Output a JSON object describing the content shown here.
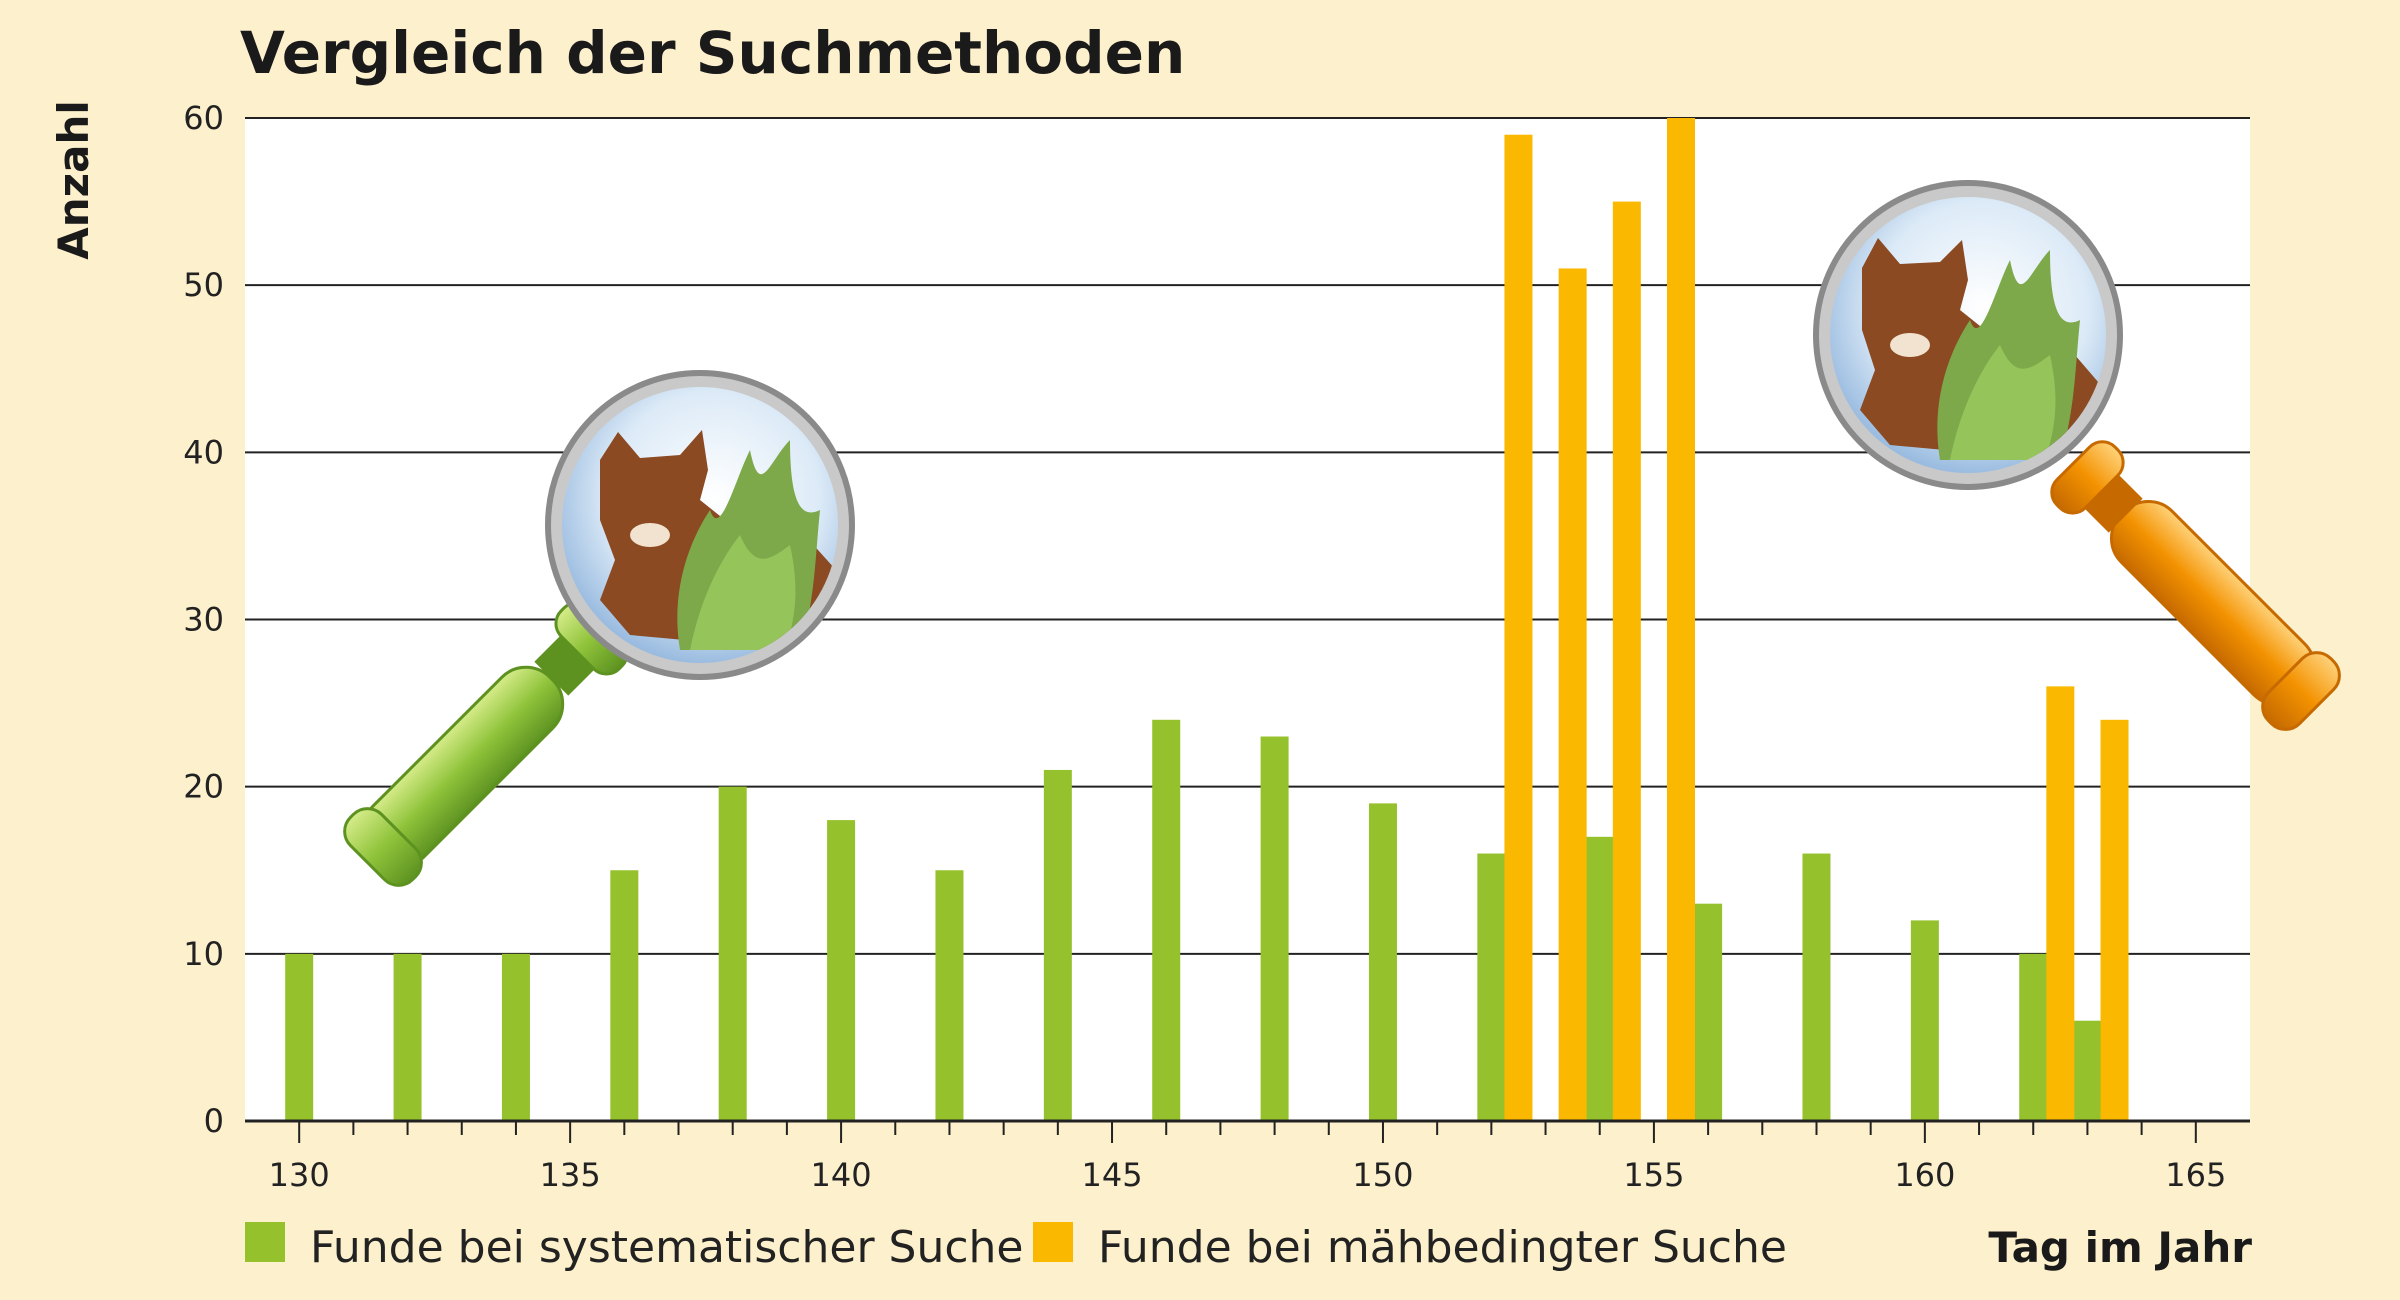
{
  "chart_data": {
    "type": "bar",
    "title": "Vergleich der Suchmethoden",
    "xlabel": "Tag im Jahr",
    "ylabel": "Anzahl",
    "xlim": [
      129,
      166
    ],
    "ylim": [
      0,
      60
    ],
    "x_ticks": [
      130,
      135,
      140,
      145,
      150,
      155,
      160,
      165
    ],
    "y_ticks": [
      0,
      10,
      20,
      30,
      40,
      50,
      60
    ],
    "grid": true,
    "legend_position": "bottom-left",
    "series": [
      {
        "name": "Funde bei systematischer Suche",
        "color": "#95c12c",
        "points": [
          {
            "x": 130,
            "y": 10
          },
          {
            "x": 132,
            "y": 10
          },
          {
            "x": 134,
            "y": 10
          },
          {
            "x": 136,
            "y": 15
          },
          {
            "x": 138,
            "y": 20
          },
          {
            "x": 140,
            "y": 18
          },
          {
            "x": 142,
            "y": 15
          },
          {
            "x": 144,
            "y": 21
          },
          {
            "x": 146,
            "y": 24
          },
          {
            "x": 148,
            "y": 23
          },
          {
            "x": 150,
            "y": 19
          },
          {
            "x": 152,
            "y": 16
          },
          {
            "x": 154,
            "y": 17
          },
          {
            "x": 156,
            "y": 13
          },
          {
            "x": 158,
            "y": 16
          },
          {
            "x": 160,
            "y": 12
          },
          {
            "x": 162,
            "y": 10
          },
          {
            "x": 163,
            "y": 6
          }
        ]
      },
      {
        "name": "Funde bei mähbedingter Suche",
        "color": "#fbb800",
        "points": [
          {
            "x": 152.5,
            "y": 59
          },
          {
            "x": 153.5,
            "y": 51
          },
          {
            "x": 154.5,
            "y": 55
          },
          {
            "x": 155.5,
            "y": 60
          },
          {
            "x": 162.5,
            "y": 26
          },
          {
            "x": 163.5,
            "y": 24
          }
        ]
      }
    ]
  },
  "decorations": {
    "left_magnifier": {
      "icon": "magnifier-fawn-icon",
      "handle_color": "#8fc33a"
    },
    "right_magnifier": {
      "icon": "magnifier-fawn-icon",
      "handle_color": "#f39200"
    }
  }
}
